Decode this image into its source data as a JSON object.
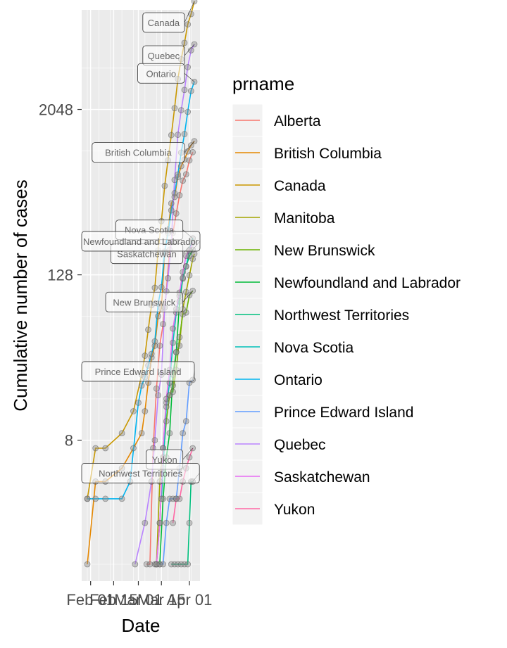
{
  "chart_data": {
    "type": "line",
    "xlabel": "Date",
    "ylabel": "Cumulative number of cases",
    "y_scale": "log2",
    "ylim": [
      1,
      8192
    ],
    "xlim": [
      "2020-01-30",
      "2020-04-04"
    ],
    "y_ticks": [
      {
        "value": 8,
        "label": "8"
      },
      {
        "value": 128,
        "label": "128"
      },
      {
        "value": 2048,
        "label": "2048"
      }
    ],
    "x_ticks": [
      {
        "value": "2020-02-01",
        "label": "Feb 01"
      },
      {
        "value": "2020-02-15",
        "label": "Feb 15"
      },
      {
        "value": "2020-03-01",
        "label": "Mar 01"
      },
      {
        "value": "2020-03-15",
        "label": "Mar 15"
      },
      {
        "value": "2020-04-01",
        "label": "Apr 01"
      }
    ],
    "grid": true,
    "legend": {
      "title": "prname",
      "position": "right"
    },
    "series": [
      {
        "name": "Alberta",
        "color": "#F8766D",
        "points": [
          [
            "2020-03-06",
            1
          ],
          [
            "2020-03-08",
            1
          ],
          [
            "2020-03-10",
            7
          ],
          [
            "2020-03-12",
            19
          ],
          [
            "2020-03-14",
            39
          ],
          [
            "2020-03-16",
            56
          ],
          [
            "2020-03-18",
            97
          ],
          [
            "2020-03-20",
            195
          ],
          [
            "2020-03-22",
            259
          ],
          [
            "2020-03-24",
            358
          ],
          [
            "2020-03-26",
            486
          ],
          [
            "2020-03-28",
            621
          ],
          [
            "2020-03-30",
            690
          ],
          [
            "2020-04-01",
            871
          ],
          [
            "2020-04-03",
            1000
          ]
        ]
      },
      {
        "name": "British Columbia",
        "color": "#E58700",
        "points": [
          [
            "2020-01-30",
            1
          ],
          [
            "2020-02-04",
            4
          ],
          [
            "2020-02-10",
            4
          ],
          [
            "2020-02-20",
            5
          ],
          [
            "2020-02-27",
            7
          ],
          [
            "2020-03-03",
            9
          ],
          [
            "2020-03-05",
            13
          ],
          [
            "2020-03-07",
            21
          ],
          [
            "2020-03-09",
            32
          ],
          [
            "2020-03-11",
            39
          ],
          [
            "2020-03-13",
            64
          ],
          [
            "2020-03-15",
            73
          ],
          [
            "2020-03-17",
            186
          ],
          [
            "2020-03-19",
            271
          ],
          [
            "2020-03-21",
            424
          ],
          [
            "2020-03-23",
            472
          ],
          [
            "2020-03-25",
            659
          ],
          [
            "2020-03-27",
            792
          ],
          [
            "2020-03-29",
            884
          ],
          [
            "2020-03-31",
            1013
          ],
          [
            "2020-04-02",
            1121
          ],
          [
            "2020-04-04",
            1203
          ]
        ]
      },
      {
        "name": "Canada",
        "color": "#C99800",
        "points": [
          [
            "2020-01-30",
            3
          ],
          [
            "2020-02-04",
            7
          ],
          [
            "2020-02-10",
            7
          ],
          [
            "2020-02-20",
            9
          ],
          [
            "2020-02-27",
            13
          ],
          [
            "2020-03-03",
            24
          ],
          [
            "2020-03-05",
            33
          ],
          [
            "2020-03-07",
            51
          ],
          [
            "2020-03-09",
            77
          ],
          [
            "2020-03-11",
            103
          ],
          [
            "2020-03-13",
            193
          ],
          [
            "2020-03-15",
            315
          ],
          [
            "2020-03-17",
            569
          ],
          [
            "2020-03-19",
            873
          ],
          [
            "2020-03-21",
            1331
          ],
          [
            "2020-03-23",
            2091
          ],
          [
            "2020-03-25",
            3409
          ],
          [
            "2020-03-27",
            4757
          ],
          [
            "2020-03-29",
            6255
          ],
          [
            "2020-03-31",
            8527
          ],
          [
            "2020-04-02",
            10132
          ],
          [
            "2020-04-04",
            12537
          ]
        ]
      },
      {
        "name": "Manitoba",
        "color": "#A3A500",
        "points": [
          [
            "2020-03-12",
            1
          ],
          [
            "2020-03-14",
            4
          ],
          [
            "2020-03-16",
            7
          ],
          [
            "2020-03-18",
            15
          ],
          [
            "2020-03-20",
            17
          ],
          [
            "2020-03-22",
            20
          ],
          [
            "2020-03-24",
            35
          ],
          [
            "2020-03-26",
            39
          ],
          [
            "2020-03-28",
            72
          ],
          [
            "2020-03-30",
            96
          ],
          [
            "2020-04-01",
            127
          ],
          [
            "2020-04-03",
            167
          ],
          [
            "2020-04-04",
            182
          ]
        ]
      },
      {
        "name": "New Brunswick",
        "color": "#6BB100",
        "points": [
          [
            "2020-03-11",
            1
          ],
          [
            "2020-03-12",
            1
          ],
          [
            "2020-03-14",
            2
          ],
          [
            "2020-03-16",
            6
          ],
          [
            "2020-03-18",
            11
          ],
          [
            "2020-03-20",
            17
          ],
          [
            "2020-03-22",
            18
          ],
          [
            "2020-03-24",
            26
          ],
          [
            "2020-03-26",
            45
          ],
          [
            "2020-03-28",
            66
          ],
          [
            "2020-03-30",
            68
          ],
          [
            "2020-04-01",
            91
          ],
          [
            "2020-04-03",
            98
          ]
        ]
      },
      {
        "name": "Newfoundland and Labrador",
        "color": "#00BA38",
        "points": [
          [
            "2020-03-14",
            1
          ],
          [
            "2020-03-16",
            3
          ],
          [
            "2020-03-18",
            6
          ],
          [
            "2020-03-20",
            9
          ],
          [
            "2020-03-22",
            24
          ],
          [
            "2020-03-24",
            35
          ],
          [
            "2020-03-26",
            82
          ],
          [
            "2020-03-28",
            120
          ],
          [
            "2020-03-30",
            148
          ],
          [
            "2020-04-01",
            175
          ],
          [
            "2020-04-03",
            195
          ]
        ]
      },
      {
        "name": "Northwest Territories",
        "color": "#00BF7D",
        "points": [
          [
            "2020-03-21",
            1
          ],
          [
            "2020-03-23",
            1
          ],
          [
            "2020-03-25",
            1
          ],
          [
            "2020-03-27",
            1
          ],
          [
            "2020-03-29",
            1
          ],
          [
            "2020-03-31",
            1
          ],
          [
            "2020-04-01",
            2
          ],
          [
            "2020-04-02",
            4
          ],
          [
            "2020-04-03",
            4
          ]
        ]
      },
      {
        "name": "Nova Scotia",
        "color": "#00C0B8",
        "points": [
          [
            "2020-03-15",
            3
          ],
          [
            "2020-03-16",
            5
          ],
          [
            "2020-03-18",
            14
          ],
          [
            "2020-03-20",
            21
          ],
          [
            "2020-03-22",
            41
          ],
          [
            "2020-03-24",
            68
          ],
          [
            "2020-03-26",
            90
          ],
          [
            "2020-03-28",
            122
          ],
          [
            "2020-03-30",
            147
          ],
          [
            "2020-04-01",
            193
          ],
          [
            "2020-04-03",
            236
          ]
        ]
      },
      {
        "name": "Ontario",
        "color": "#00B4F0",
        "points": [
          [
            "2020-01-30",
            3
          ],
          [
            "2020-02-04",
            3
          ],
          [
            "2020-02-10",
            3
          ],
          [
            "2020-02-20",
            3
          ],
          [
            "2020-02-25",
            4
          ],
          [
            "2020-03-01",
            15
          ],
          [
            "2020-03-03",
            20
          ],
          [
            "2020-03-05",
            23
          ],
          [
            "2020-03-07",
            28
          ],
          [
            "2020-03-09",
            34
          ],
          [
            "2020-03-11",
            42
          ],
          [
            "2020-03-13",
            79
          ],
          [
            "2020-03-15",
            104
          ],
          [
            "2020-03-17",
            189
          ],
          [
            "2020-03-19",
            258
          ],
          [
            "2020-03-21",
            377
          ],
          [
            "2020-03-23",
            503
          ],
          [
            "2020-03-25",
            688
          ],
          [
            "2020-03-27",
            993
          ],
          [
            "2020-03-29",
            1355
          ],
          [
            "2020-03-31",
            1966
          ],
          [
            "2020-04-02",
            2793
          ],
          [
            "2020-04-04",
            3255
          ]
        ]
      },
      {
        "name": "Prince Edward Island",
        "color": "#619CFF",
        "points": [
          [
            "2020-03-14",
            1
          ],
          [
            "2020-03-16",
            1
          ],
          [
            "2020-03-18",
            2
          ],
          [
            "2020-03-20",
            3
          ],
          [
            "2020-03-22",
            3
          ],
          [
            "2020-03-24",
            3
          ],
          [
            "2020-03-26",
            5
          ],
          [
            "2020-03-28",
            9
          ],
          [
            "2020-03-30",
            11
          ],
          [
            "2020-04-01",
            21
          ],
          [
            "2020-04-03",
            22
          ]
        ]
      },
      {
        "name": "Quebec",
        "color": "#B983FF",
        "points": [
          [
            "2020-02-28",
            1
          ],
          [
            "2020-03-05",
            2
          ],
          [
            "2020-03-09",
            4
          ],
          [
            "2020-03-11",
            8
          ],
          [
            "2020-03-13",
            17
          ],
          [
            "2020-03-15",
            24
          ],
          [
            "2020-03-17",
            74
          ],
          [
            "2020-03-19",
            121
          ],
          [
            "2020-03-21",
            221
          ],
          [
            "2020-03-23",
            628
          ],
          [
            "2020-03-25",
            1339
          ],
          [
            "2020-03-27",
            2021
          ],
          [
            "2020-03-29",
            2840
          ],
          [
            "2020-03-31",
            4162
          ],
          [
            "2020-04-02",
            5518
          ],
          [
            "2020-04-04",
            6101
          ]
        ]
      },
      {
        "name": "Saskatchewan",
        "color": "#E76BF3",
        "points": [
          [
            "2020-03-12",
            1
          ],
          [
            "2020-03-14",
            2
          ],
          [
            "2020-03-16",
            7
          ],
          [
            "2020-03-18",
            16
          ],
          [
            "2020-03-20",
            26
          ],
          [
            "2020-03-22",
            52
          ],
          [
            "2020-03-24",
            72
          ],
          [
            "2020-03-26",
            95
          ],
          [
            "2020-03-28",
            134
          ],
          [
            "2020-03-30",
            176
          ],
          [
            "2020-04-01",
            193
          ],
          [
            "2020-04-03",
            220
          ]
        ]
      },
      {
        "name": "Yukon",
        "color": "#FF67A4",
        "points": [
          [
            "2020-03-22",
            2
          ],
          [
            "2020-03-24",
            3
          ],
          [
            "2020-03-26",
            3
          ],
          [
            "2020-03-28",
            4
          ],
          [
            "2020-03-30",
            5
          ],
          [
            "2020-04-01",
            6
          ],
          [
            "2020-04-03",
            7
          ]
        ]
      }
    ],
    "callouts": [
      {
        "text": "Canada",
        "series": "Canada",
        "align": "start"
      },
      {
        "text": "Quebec",
        "series": "Quebec",
        "align": "start"
      },
      {
        "text": "Ontario",
        "series": "Ontario",
        "align": "start"
      },
      {
        "text": "British Columbia",
        "series": "British Columbia",
        "align": "start"
      },
      {
        "text": "Nova Scotia",
        "series": "Nova Scotia",
        "align": "start"
      },
      {
        "text": "Saskatchewan",
        "series": "Saskatchewan",
        "align": "start"
      },
      {
        "text": "Newfoundland and Labrador",
        "series": "Newfoundland and Labrador",
        "align": "start"
      },
      {
        "text": "New Brunswick",
        "series": "New Brunswick",
        "align": "start"
      },
      {
        "text": "Prince Edward Island",
        "series": "Prince Edward Island",
        "align": "start"
      },
      {
        "text": "Yukon",
        "series": "Yukon",
        "align": "start"
      },
      {
        "text": "Northwest Territories",
        "series": "Northwest Territories",
        "align": "start"
      }
    ]
  }
}
